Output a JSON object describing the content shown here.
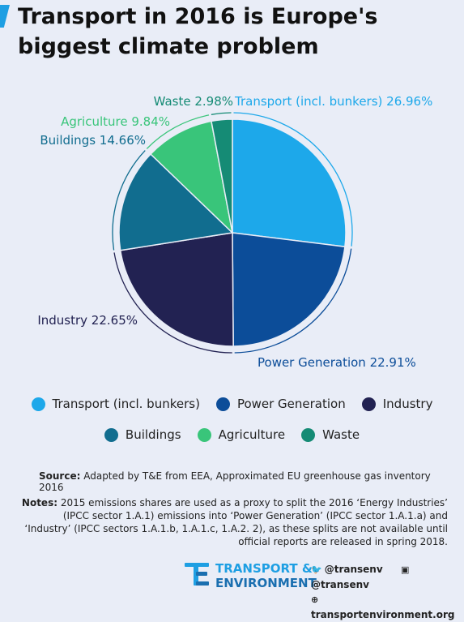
{
  "title": "Transport in 2016 is Europe's biggest climate problem",
  "chart_data": {
    "type": "pie",
    "slices": [
      {
        "name": "Transport (incl. bunkers)",
        "value": 26.96,
        "label": "Transport (incl. bunkers) 26.96%",
        "color": "#1da8ea"
      },
      {
        "name": "Power Generation",
        "value": 22.91,
        "label": "Power Generation 22.91%",
        "color": "#0c4d99"
      },
      {
        "name": "Industry",
        "value": 22.65,
        "label": "Industry 22.65%",
        "color": "#222252"
      },
      {
        "name": "Buildings",
        "value": 14.66,
        "label": "Buildings 14.66%",
        "color": "#116d8f"
      },
      {
        "name": "Agriculture",
        "value": 9.84,
        "label": "Agriculture 9.84%",
        "color": "#39c57a"
      },
      {
        "name": "Waste",
        "value": 2.98,
        "label": "Waste 2.98%",
        "color": "#158b75"
      }
    ],
    "legend": [
      "Transport (incl. bunkers)",
      "Power Generation",
      "Industry",
      "Buildings",
      "Agriculture",
      "Waste"
    ]
  },
  "source": {
    "label": "Source:",
    "text": " Adapted by T&E from EEA, Approximated EU greenhouse gas inventory 2016"
  },
  "notes": {
    "label": "Notes:",
    "text": "  2015 emissions shares are used as a proxy to split the 2016 ‘Energy Industries’ (IPCC sector 1.A.1) emissions into ‘Power Generation’ (IPCC sector 1.A.1.a) and ‘Industry’ (IPCC sectors 1.A.1.b, 1.A.1.c, 1.A.2. 2), as these splits are not available until official reports are released in spring 2018."
  },
  "footer": {
    "brand_line1": "TRANSPORT &",
    "brand_line2": "ENVIRONMENT",
    "twitter": "@transenv",
    "facebook": "@transenv",
    "website": "transportenvironment.org"
  }
}
